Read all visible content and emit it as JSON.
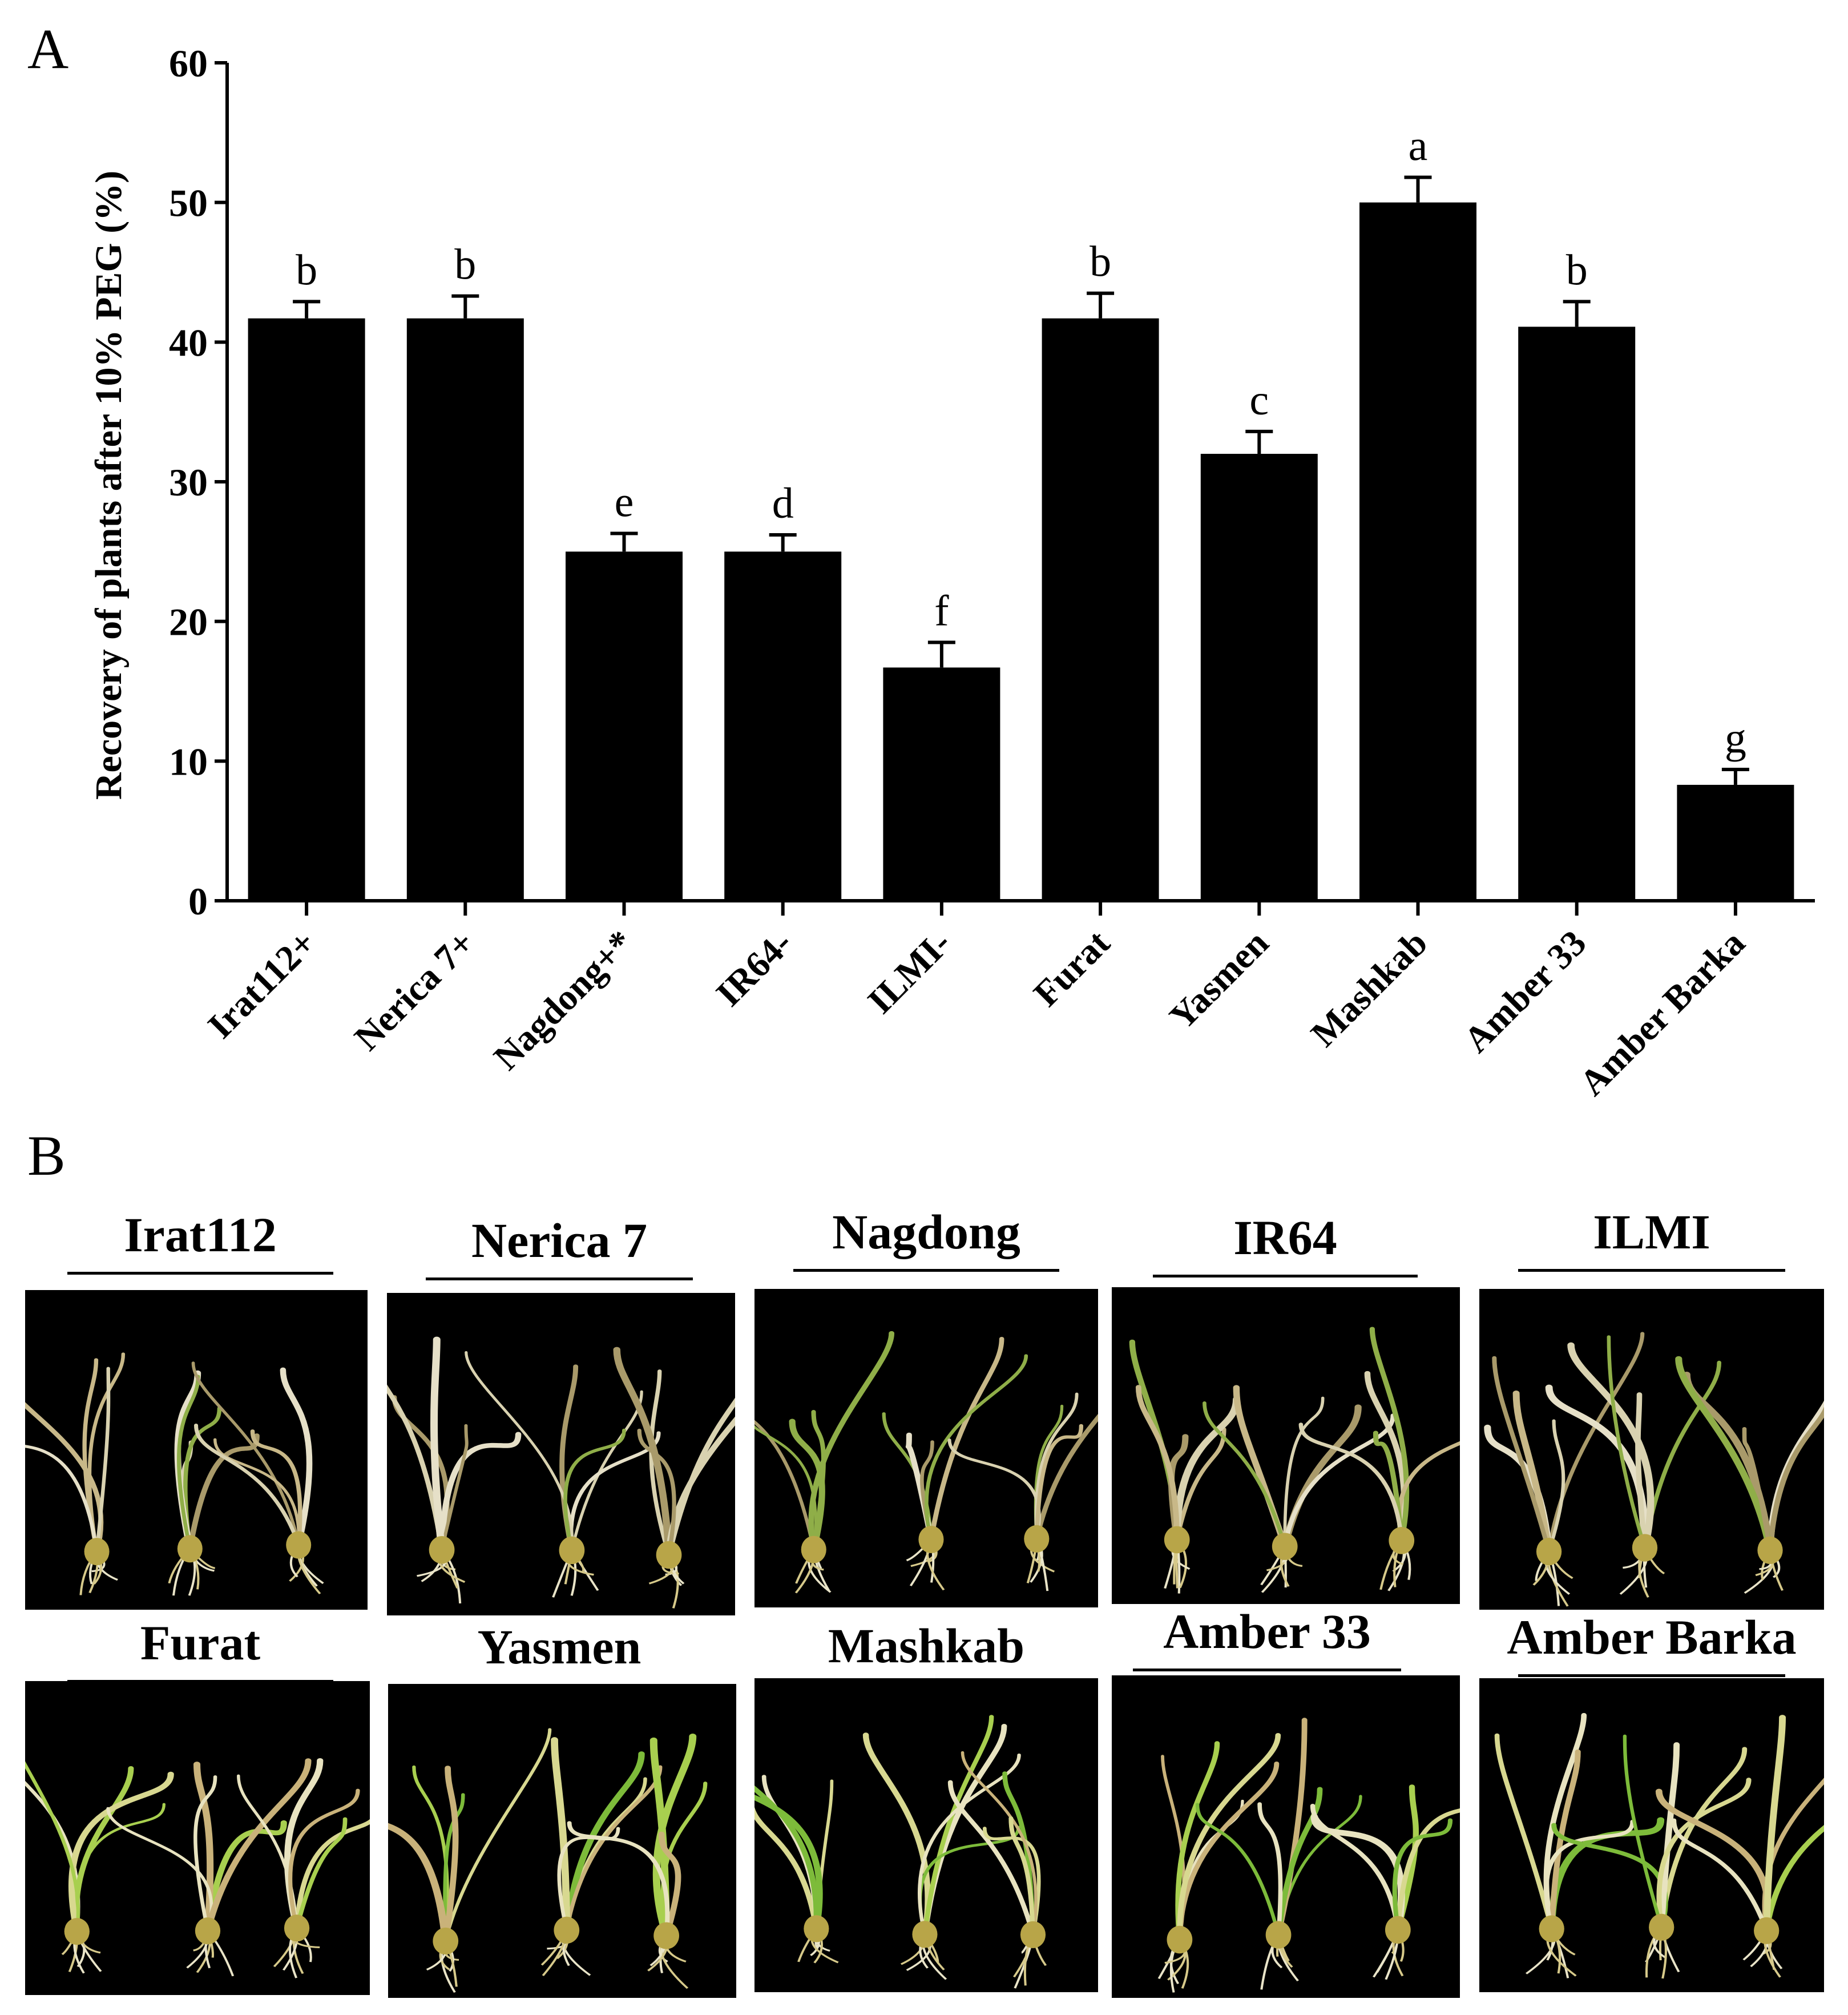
{
  "panel_labels": {
    "a": "A",
    "b": "B"
  },
  "chart_data": {
    "type": "bar",
    "ylabel": "Recovery of plants  after 10% PEG (%)",
    "xlabel": "",
    "ylim": [
      0,
      60
    ],
    "yticks": [
      0,
      10,
      20,
      30,
      40,
      50,
      60
    ],
    "categories": [
      "Irat112+",
      "Nerica 7+",
      "Nagdong+*",
      "IR64-",
      "ILMI-",
      "Furat",
      "Yasmen",
      "Mashkab",
      "Amber 33",
      "Amber Barka"
    ],
    "values": [
      41.7,
      41.7,
      25.0,
      25.0,
      16.7,
      41.7,
      32.0,
      50.0,
      41.1,
      8.3
    ],
    "errors": [
      1.2,
      1.6,
      1.3,
      1.2,
      1.8,
      1.8,
      1.6,
      1.8,
      1.8,
      1.1
    ],
    "significance": [
      "b",
      "b",
      "e",
      "d",
      "f",
      "b",
      "c",
      "a",
      "b",
      "g"
    ],
    "bar_color": "#000000",
    "grid": false
  },
  "photos": [
    {
      "title": "Irat112"
    },
    {
      "title": "Nerica 7"
    },
    {
      "title": "Nagdong"
    },
    {
      "title": "IR64"
    },
    {
      "title": "ILMI"
    },
    {
      "title": "Furat"
    },
    {
      "title": "Yasmen"
    },
    {
      "title": "Mashkab"
    },
    {
      "title": "Amber 33"
    },
    {
      "title": "Amber Barka"
    }
  ]
}
